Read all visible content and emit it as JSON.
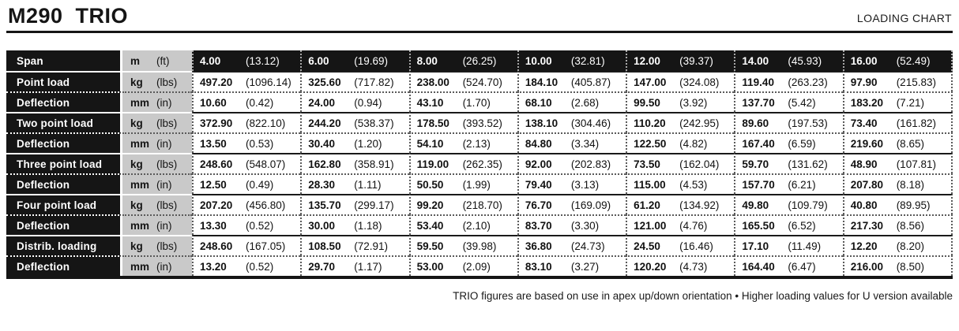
{
  "header": {
    "title": "M290  TRIO",
    "right_label": "LOADING CHART"
  },
  "colors": {
    "black": "#151515",
    "unit_bg": "#c9c9c9",
    "separator": "#5a5a5a"
  },
  "table": {
    "rows": [
      {
        "kind": "span",
        "label": "Span",
        "unit": [
          "m",
          "(ft)"
        ],
        "cells": [
          [
            "4.00",
            "(13.12)"
          ],
          [
            "6.00",
            "(19.69)"
          ],
          [
            "8.00",
            "(26.25)"
          ],
          [
            "10.00",
            "(32.81)"
          ],
          [
            "12.00",
            "(39.37)"
          ],
          [
            "14.00",
            "(45.93)"
          ],
          [
            "16.00",
            "(52.49)"
          ]
        ]
      },
      {
        "kind": "load",
        "label": "Point load",
        "unit": [
          "kg",
          "(lbs)"
        ],
        "cells": [
          [
            "497.20",
            "(1096.14)"
          ],
          [
            "325.60",
            "(717.82)"
          ],
          [
            "238.00",
            "(524.70)"
          ],
          [
            "184.10",
            "(405.87)"
          ],
          [
            "147.00",
            "(324.08)"
          ],
          [
            "119.40",
            "(263.23)"
          ],
          [
            "97.90",
            "(215.83)"
          ]
        ]
      },
      {
        "kind": "deflection",
        "label": "Deflection",
        "unit": [
          "mm",
          "(in)"
        ],
        "cells": [
          [
            "10.60",
            "(0.42)"
          ],
          [
            "24.00",
            "(0.94)"
          ],
          [
            "43.10",
            "(1.70)"
          ],
          [
            "68.10",
            "(2.68)"
          ],
          [
            "99.50",
            "(3.92)"
          ],
          [
            "137.70",
            "(5.42)"
          ],
          [
            "183.20",
            "(7.21)"
          ]
        ]
      },
      {
        "kind": "load",
        "label": "Two point load",
        "unit": [
          "kg",
          "(lbs)"
        ],
        "cells": [
          [
            "372.90",
            "(822.10)"
          ],
          [
            "244.20",
            "(538.37)"
          ],
          [
            "178.50",
            "(393.52)"
          ],
          [
            "138.10",
            "(304.46)"
          ],
          [
            "110.20",
            "(242.95)"
          ],
          [
            "89.60",
            "(197.53)"
          ],
          [
            "73.40",
            "(161.82)"
          ]
        ]
      },
      {
        "kind": "deflection",
        "label": "Deflection",
        "unit": [
          "mm",
          "(in)"
        ],
        "cells": [
          [
            "13.50",
            "(0.53)"
          ],
          [
            "30.40",
            "(1.20)"
          ],
          [
            "54.10",
            "(2.13)"
          ],
          [
            "84.80",
            "(3.34)"
          ],
          [
            "122.50",
            "(4.82)"
          ],
          [
            "167.40",
            "(6.59)"
          ],
          [
            "219.60",
            "(8.65)"
          ]
        ]
      },
      {
        "kind": "load",
        "label": "Three point load",
        "unit": [
          "kg",
          "(lbs)"
        ],
        "cells": [
          [
            "248.60",
            "(548.07)"
          ],
          [
            "162.80",
            "(358.91)"
          ],
          [
            "119.00",
            "(262.35)"
          ],
          [
            "92.00",
            "(202.83)"
          ],
          [
            "73.50",
            "(162.04)"
          ],
          [
            "59.70",
            "(131.62)"
          ],
          [
            "48.90",
            "(107.81)"
          ]
        ]
      },
      {
        "kind": "deflection",
        "label": "Deflection",
        "unit": [
          "mm",
          "(in)"
        ],
        "cells": [
          [
            "12.50",
            "(0.49)"
          ],
          [
            "28.30",
            "(1.11)"
          ],
          [
            "50.50",
            "(1.99)"
          ],
          [
            "79.40",
            "(3.13)"
          ],
          [
            "115.00",
            "(4.53)"
          ],
          [
            "157.70",
            "(6.21)"
          ],
          [
            "207.80",
            "(8.18)"
          ]
        ]
      },
      {
        "kind": "load",
        "label": "Four point load",
        "unit": [
          "kg",
          "(lbs)"
        ],
        "cells": [
          [
            "207.20",
            "(456.80)"
          ],
          [
            "135.70",
            "(299.17)"
          ],
          [
            "99.20",
            "(218.70)"
          ],
          [
            "76.70",
            "(169.09)"
          ],
          [
            "61.20",
            "(134.92)"
          ],
          [
            "49.80",
            "(109.79)"
          ],
          [
            "40.80",
            "(89.95)"
          ]
        ]
      },
      {
        "kind": "deflection",
        "label": "Deflection",
        "unit": [
          "mm",
          "(in)"
        ],
        "cells": [
          [
            "13.30",
            "(0.52)"
          ],
          [
            "30.00",
            "(1.18)"
          ],
          [
            "53.40",
            "(2.10)"
          ],
          [
            "83.70",
            "(3.30)"
          ],
          [
            "121.00",
            "(4.76)"
          ],
          [
            "165.50",
            "(6.52)"
          ],
          [
            "217.30",
            "(8.56)"
          ]
        ]
      },
      {
        "kind": "load",
        "label": "Distrib. loading",
        "unit": [
          "kg",
          "(lbs)"
        ],
        "cells": [
          [
            "248.60",
            "(167.05)"
          ],
          [
            "108.50",
            "(72.91)"
          ],
          [
            "59.50",
            "(39.98)"
          ],
          [
            "36.80",
            "(24.73)"
          ],
          [
            "24.50",
            "(16.46)"
          ],
          [
            "17.10",
            "(11.49)"
          ],
          [
            "12.20",
            "(8.20)"
          ]
        ]
      },
      {
        "kind": "deflection",
        "label": "Deflection",
        "unit": [
          "mm",
          "(in)"
        ],
        "cells": [
          [
            "13.20",
            "(0.52)"
          ],
          [
            "29.70",
            "(1.17)"
          ],
          [
            "53.00",
            "(2.09)"
          ],
          [
            "83.10",
            "(3.27)"
          ],
          [
            "120.20",
            "(4.73)"
          ],
          [
            "164.40",
            "(6.47)"
          ],
          [
            "216.00",
            "(8.50)"
          ]
        ]
      }
    ]
  },
  "footer": {
    "note": "TRIO figures are based on use in apex up/down orientation • Higher loading values for U version available"
  }
}
